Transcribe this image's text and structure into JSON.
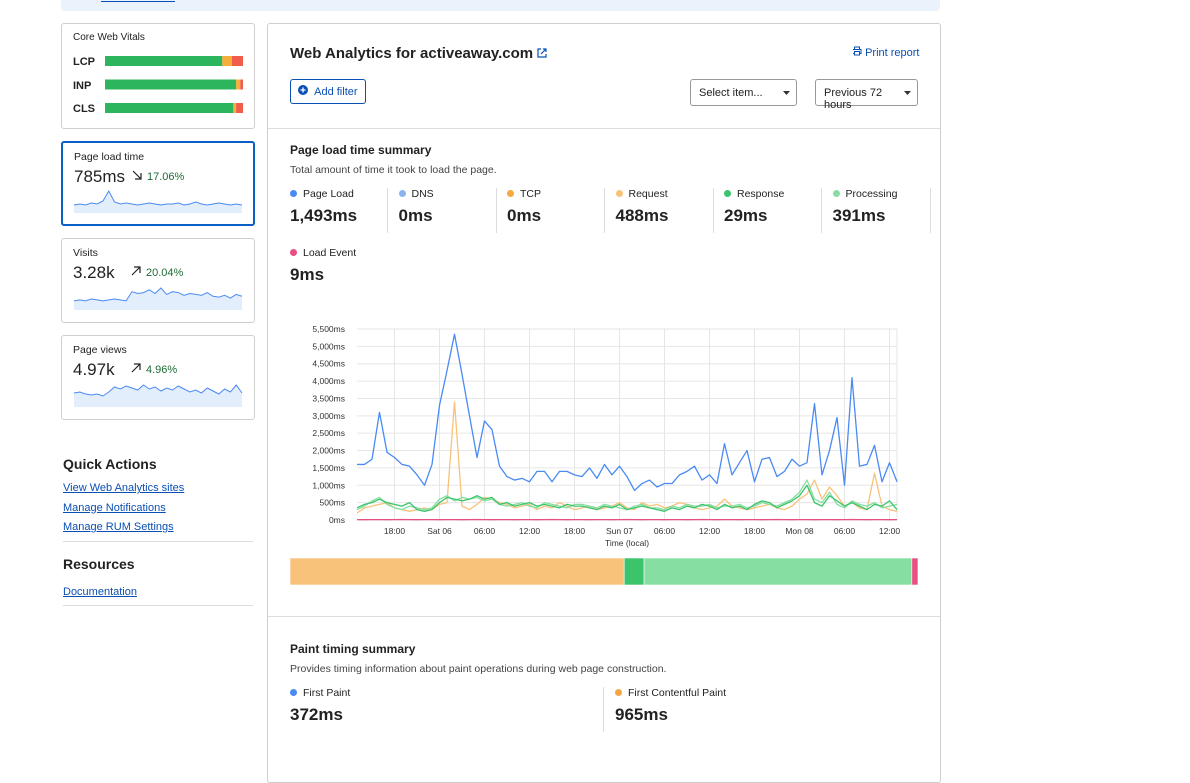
{
  "sidebar": {
    "vitals": {
      "title": "Core Web Vitals",
      "colors": [
        "#2db55d",
        "#f6ad3a",
        "#f05d4a"
      ],
      "items": [
        {
          "label": "LCP",
          "segments": [
            85,
            7,
            8
          ]
        },
        {
          "label": "INP",
          "segments": [
            95,
            3,
            2
          ]
        },
        {
          "label": "CLS",
          "segments": [
            93,
            2,
            5
          ]
        }
      ]
    },
    "cards": [
      {
        "title": "Page load time",
        "value": "785ms",
        "change": "17.06%",
        "direction": "down",
        "selected": true,
        "spark": [
          8,
          9,
          8,
          10,
          9,
          12,
          22,
          11,
          9,
          10,
          9,
          8,
          9,
          10,
          9,
          8,
          9,
          9,
          10,
          8,
          9,
          11,
          9,
          8,
          9,
          10,
          9,
          8,
          9,
          8
        ]
      },
      {
        "title": "Visits",
        "value": "3.28k",
        "change": "20.04%",
        "direction": "up",
        "selected": false,
        "spark": [
          10,
          11,
          10,
          12,
          11,
          10,
          11,
          12,
          11,
          10,
          20,
          18,
          19,
          22,
          18,
          24,
          17,
          20,
          19,
          16,
          18,
          17,
          16,
          19,
          15,
          14,
          16,
          13,
          17,
          15
        ]
      },
      {
        "title": "Page views",
        "value": "4.97k",
        "change": "4.96%",
        "direction": "up",
        "selected": false,
        "spark": [
          14,
          15,
          13,
          12,
          13,
          11,
          15,
          20,
          18,
          21,
          19,
          17,
          22,
          18,
          20,
          16,
          19,
          17,
          21,
          18,
          15,
          17,
          14,
          19,
          16,
          13,
          18,
          15,
          22,
          14
        ]
      }
    ],
    "quick_actions": {
      "title": "Quick Actions",
      "links": [
        "View Web Analytics sites",
        "Manage Notifications",
        "Manage RUM Settings"
      ]
    },
    "resources": {
      "title": "Resources",
      "links": [
        "Documentation"
      ]
    }
  },
  "header": {
    "title": "Web Analytics for activeaway.com",
    "print": "Print report",
    "add_filter": "Add filter",
    "select": "Select item...",
    "period": "Previous 72 hours"
  },
  "load_section": {
    "title": "Page load time summary",
    "description": "Total amount of time it took to load the page."
  },
  "chart_data": {
    "type": "line",
    "xlabel": "Time (local)",
    "categories": [
      null,
      null,
      null,
      null,
      null,
      "18:00",
      null,
      null,
      null,
      null,
      null,
      "Sat 06",
      null,
      null,
      null,
      null,
      null,
      "06:00",
      null,
      null,
      null,
      null,
      null,
      "12:00",
      null,
      null,
      null,
      null,
      null,
      "18:00",
      null,
      null,
      null,
      null,
      null,
      "Sun 07",
      null,
      null,
      null,
      null,
      null,
      "06:00",
      null,
      null,
      null,
      null,
      null,
      "12:00",
      null,
      null,
      null,
      null,
      null,
      "18:00",
      null,
      null,
      null,
      null,
      null,
      "Mon 08",
      null,
      null,
      null,
      null,
      null,
      "06:00",
      null,
      null,
      null,
      null,
      null,
      "12:00",
      null
    ],
    "ylim": [
      0,
      5500
    ],
    "yticks": [
      {
        "value": 0,
        "label": "0ms"
      },
      {
        "value": 500,
        "label": "500ms"
      },
      {
        "value": 1000,
        "label": "1,000ms"
      },
      {
        "value": 1500,
        "label": "1,500ms"
      },
      {
        "value": 2000,
        "label": "2,000ms"
      },
      {
        "value": 2500,
        "label": "2,500ms"
      },
      {
        "value": 3000,
        "label": "3,000ms"
      },
      {
        "value": 3500,
        "label": "3,500ms"
      },
      {
        "value": 4000,
        "label": "4,000ms"
      },
      {
        "value": 4500,
        "label": "4,500ms"
      },
      {
        "value": 5000,
        "label": "5,000ms"
      },
      {
        "value": 5500,
        "label": "5,500ms"
      }
    ],
    "grid": true,
    "series": [
      {
        "name": "Page Load",
        "color": "#4a8af4",
        "total": 1493,
        "total_label": "1,493ms",
        "values": [
          1600,
          1600,
          1750,
          3100,
          1950,
          1800,
          1600,
          1550,
          1300,
          1000,
          1600,
          3300,
          4300,
          5350,
          4200,
          3000,
          1800,
          2850,
          2600,
          1550,
          1250,
          1150,
          1200,
          1100,
          1400,
          1400,
          1100,
          1400,
          1400,
          1300,
          1250,
          1500,
          1200,
          1600,
          1300,
          1550,
          1250,
          850,
          1050,
          1150,
          950,
          1050,
          1050,
          1300,
          1400,
          1550,
          1150,
          1300,
          1050,
          2200,
          1300,
          1650,
          2000,
          1100,
          1750,
          1800,
          1250,
          1400,
          1750,
          1550,
          1650,
          3350,
          1300,
          2000,
          2950,
          1000,
          4100,
          1550,
          1600,
          2150,
          1100,
          1650,
          1100
        ]
      },
      {
        "name": "DNS",
        "color": "#8ab4f0",
        "total": 0,
        "total_label": "0ms"
      },
      {
        "name": "TCP",
        "color": "#f5a742",
        "total": 0,
        "total_label": "0ms"
      },
      {
        "name": "Request",
        "color": "#f8c27a",
        "total": 488,
        "total_label": "488ms",
        "values": [
          200,
          350,
          400,
          450,
          500,
          350,
          300,
          250,
          300,
          350,
          300,
          450,
          500,
          3400,
          400,
          300,
          450,
          650,
          600,
          500,
          450,
          350,
          400,
          450,
          300,
          400,
          350,
          500,
          400,
          300,
          350,
          400,
          300,
          350,
          400,
          500,
          350,
          300,
          500,
          400,
          450,
          350,
          400,
          500,
          450,
          350,
          300,
          350,
          400,
          600,
          400,
          350,
          300,
          350,
          400,
          450,
          350,
          300,
          400,
          600,
          750,
          1150,
          600,
          950,
          700,
          400,
          500,
          350,
          300,
          1350,
          400,
          300,
          250
        ]
      },
      {
        "name": "Response",
        "color": "#3cc46c",
        "total": 29,
        "total_label": "29ms",
        "values": [
          350,
          450,
          500,
          600,
          500,
          450,
          400,
          500,
          300,
          250,
          300,
          500,
          650,
          600,
          550,
          600,
          700,
          600,
          650,
          450,
          500,
          400,
          450,
          500,
          400,
          450,
          400,
          350,
          450,
          400,
          400,
          350,
          300,
          400,
          350,
          450,
          300,
          350,
          400,
          350,
          300,
          250,
          350,
          300,
          400,
          350,
          450,
          400,
          300,
          450,
          350,
          400,
          300,
          450,
          550,
          500,
          350,
          450,
          550,
          700,
          1000,
          500,
          400,
          700,
          550,
          400,
          500,
          400,
          300,
          450,
          400,
          550,
          300
        ]
      },
      {
        "name": "Processing",
        "color": "#86dea2",
        "total": 391,
        "total_label": "391ms",
        "values": [
          300,
          400,
          550,
          650,
          450,
          350,
          300,
          400,
          350,
          300,
          350,
          600,
          700,
          550,
          650,
          600,
          650,
          550,
          600,
          450,
          400,
          450,
          500,
          400,
          350,
          500,
          450,
          400,
          350,
          450,
          450,
          400,
          350,
          450,
          400,
          350,
          300,
          400,
          450,
          350,
          350,
          300,
          400,
          350,
          450,
          400,
          400,
          450,
          350,
          400,
          400,
          450,
          350,
          400,
          500,
          450,
          400,
          500,
          600,
          800,
          1150,
          600,
          500,
          800,
          450,
          350,
          550,
          450,
          400,
          500,
          350,
          400,
          450
        ]
      },
      {
        "name": "Load Event",
        "color": "#e84f82",
        "total": 9,
        "total_label": "9ms",
        "values": [
          10,
          9,
          11,
          10,
          9,
          10,
          12,
          10,
          9,
          10,
          10,
          9,
          11,
          10,
          9,
          10,
          12,
          10,
          9,
          10,
          10,
          9,
          11,
          10,
          9,
          10,
          12,
          10,
          9,
          10,
          10,
          9,
          11,
          10,
          9,
          10,
          12,
          10,
          9,
          10,
          10,
          9,
          11,
          10,
          9,
          10,
          12,
          10,
          9,
          10,
          10,
          9,
          11,
          10,
          9,
          10,
          12,
          10,
          9,
          10,
          10,
          9,
          11,
          10,
          9,
          10,
          12,
          10,
          9,
          10,
          10,
          9,
          11
        ]
      }
    ]
  },
  "paint_section": {
    "title": "Paint timing summary",
    "description": "Provides timing information about paint operations during web page construction.",
    "metrics": [
      {
        "name": "First Paint",
        "color": "#4a8af4",
        "value": "372ms"
      },
      {
        "name": "First Contentful Paint",
        "color": "#f5a742",
        "value": "965ms"
      }
    ]
  }
}
